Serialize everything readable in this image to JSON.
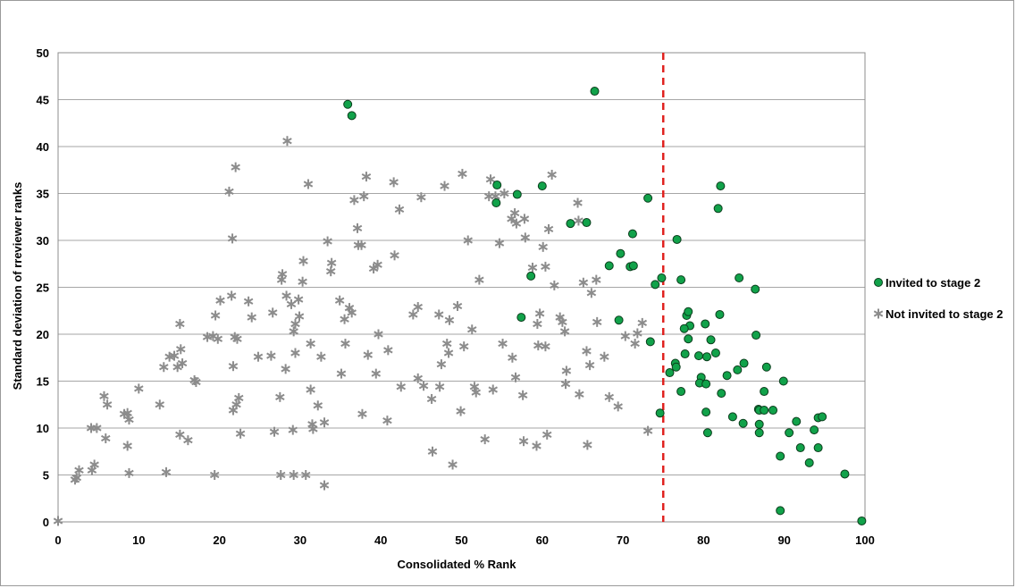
{
  "chart_data": {
    "type": "scatter",
    "title": "",
    "xlabel": "Consolidated % Rank",
    "ylabel": "Standard deviation of rreviewer ranks",
    "xlim": [
      0,
      100
    ],
    "ylim": [
      0,
      50
    ],
    "x_ticks": [
      "0",
      "10",
      "20",
      "30",
      "40",
      "50",
      "60",
      "70",
      "80",
      "90",
      "100"
    ],
    "y_ticks": [
      "0",
      "5",
      "10",
      "15",
      "20",
      "25",
      "30",
      "35",
      "40",
      "45",
      "50"
    ],
    "grid": "horizontal",
    "cutoff_line": {
      "x": 75,
      "style": "dashed",
      "color": "#e0221f"
    },
    "legend_position": "right",
    "colors": {
      "invited_fill": "#11a24a",
      "invited_edge": "#0b3d1c",
      "not_invited": "#8c8c8c",
      "grid": "#a6a6a6"
    },
    "series": [
      {
        "name": "Invited to stage 2",
        "marker": "circle",
        "points": [
          [
            35.9,
            44.5
          ],
          [
            36.4,
            43.3
          ],
          [
            66.5,
            45.9
          ],
          [
            54.3,
            34.0
          ],
          [
            54.4,
            35.9
          ],
          [
            56.9,
            34.9
          ],
          [
            60.0,
            35.8
          ],
          [
            73.1,
            34.5
          ],
          [
            63.5,
            31.8
          ],
          [
            65.5,
            31.9
          ],
          [
            71.2,
            30.7
          ],
          [
            76.7,
            30.1
          ],
          [
            69.7,
            28.6
          ],
          [
            68.3,
            27.3
          ],
          [
            70.9,
            27.2
          ],
          [
            71.3,
            27.3
          ],
          [
            58.6,
            26.2
          ],
          [
            74.8,
            26.0
          ],
          [
            74.0,
            25.3
          ],
          [
            57.4,
            21.8
          ],
          [
            69.5,
            21.5
          ],
          [
            73.4,
            19.2
          ],
          [
            74.6,
            11.6
          ],
          [
            82.1,
            35.8
          ],
          [
            81.8,
            33.4
          ],
          [
            77.2,
            25.8
          ],
          [
            84.4,
            26.0
          ],
          [
            86.4,
            24.8
          ],
          [
            77.9,
            22.0
          ],
          [
            78.1,
            22.4
          ],
          [
            82.0,
            22.1
          ],
          [
            78.3,
            20.9
          ],
          [
            77.6,
            20.6
          ],
          [
            80.2,
            21.1
          ],
          [
            86.5,
            19.9
          ],
          [
            78.1,
            19.5
          ],
          [
            80.9,
            19.4
          ],
          [
            77.7,
            17.9
          ],
          [
            79.4,
            17.7
          ],
          [
            80.4,
            17.6
          ],
          [
            81.5,
            18.0
          ],
          [
            75.8,
            15.9
          ],
          [
            76.5,
            16.9
          ],
          [
            76.6,
            16.5
          ],
          [
            85.0,
            16.9
          ],
          [
            84.2,
            16.2
          ],
          [
            87.8,
            16.5
          ],
          [
            79.7,
            15.4
          ],
          [
            82.9,
            15.6
          ],
          [
            79.5,
            14.8
          ],
          [
            80.3,
            14.7
          ],
          [
            89.9,
            15.0
          ],
          [
            77.2,
            13.9
          ],
          [
            82.2,
            13.7
          ],
          [
            87.5,
            13.9
          ],
          [
            80.3,
            11.7
          ],
          [
            83.6,
            11.2
          ],
          [
            86.8,
            12.0
          ],
          [
            86.9,
            11.9
          ],
          [
            87.5,
            11.9
          ],
          [
            88.6,
            11.9
          ],
          [
            84.9,
            10.5
          ],
          [
            86.9,
            10.4
          ],
          [
            91.5,
            10.7
          ],
          [
            94.2,
            11.1
          ],
          [
            94.7,
            11.2
          ],
          [
            80.5,
            9.5
          ],
          [
            86.9,
            9.5
          ],
          [
            90.6,
            9.5
          ],
          [
            92.0,
            7.9
          ],
          [
            93.7,
            9.8
          ],
          [
            94.2,
            7.9
          ],
          [
            89.5,
            7.0
          ],
          [
            93.1,
            6.3
          ],
          [
            97.5,
            5.1
          ],
          [
            89.5,
            1.2
          ],
          [
            99.6,
            0.1
          ]
        ]
      },
      {
        "name": "Not invited to stage 2",
        "marker": "asterisk",
        "points": [
          [
            0.0,
            0.1
          ],
          [
            2.1,
            4.5
          ],
          [
            2.3,
            4.7
          ],
          [
            2.6,
            5.5
          ],
          [
            4.2,
            5.5
          ],
          [
            4.5,
            6.1
          ],
          [
            4.1,
            10.0
          ],
          [
            4.8,
            10.0
          ],
          [
            5.9,
            8.9
          ],
          [
            5.7,
            13.4
          ],
          [
            6.1,
            12.5
          ],
          [
            8.2,
            11.5
          ],
          [
            8.6,
            11.6
          ],
          [
            8.8,
            10.9
          ],
          [
            8.6,
            8.1
          ],
          [
            8.8,
            5.2
          ],
          [
            10.0,
            14.2
          ],
          [
            12.6,
            12.5
          ],
          [
            13.1,
            16.5
          ],
          [
            13.4,
            5.3
          ],
          [
            13.8,
            17.6
          ],
          [
            14.4,
            17.7
          ],
          [
            14.8,
            16.5
          ],
          [
            15.2,
            18.4
          ],
          [
            15.4,
            16.9
          ],
          [
            15.1,
            21.1
          ],
          [
            15.1,
            9.3
          ],
          [
            16.1,
            8.7
          ],
          [
            16.9,
            15.1
          ],
          [
            17.1,
            14.9
          ],
          [
            18.5,
            19.7
          ],
          [
            19.2,
            19.8
          ],
          [
            19.5,
            22.0
          ],
          [
            19.8,
            19.5
          ],
          [
            20.1,
            23.6
          ],
          [
            19.4,
            5.0
          ],
          [
            21.2,
            35.2
          ],
          [
            21.6,
            30.2
          ],
          [
            21.5,
            24.1
          ],
          [
            21.7,
            16.6
          ],
          [
            21.7,
            11.9
          ],
          [
            21.9,
            19.7
          ],
          [
            22.2,
            19.5
          ],
          [
            22.1,
            12.5
          ],
          [
            22.4,
            13.2
          ],
          [
            22.6,
            9.4
          ],
          [
            22.0,
            37.8
          ],
          [
            23.6,
            23.5
          ],
          [
            24.0,
            21.8
          ],
          [
            24.8,
            17.6
          ],
          [
            26.4,
            17.7
          ],
          [
            26.6,
            22.3
          ],
          [
            26.8,
            9.6
          ],
          [
            27.5,
            13.3
          ],
          [
            27.7,
            25.8
          ],
          [
            27.8,
            26.4
          ],
          [
            27.6,
            5.0
          ],
          [
            28.3,
            24.1
          ],
          [
            28.2,
            16.3
          ],
          [
            28.4,
            40.6
          ],
          [
            28.9,
            23.2
          ],
          [
            29.2,
            20.3
          ],
          [
            29.1,
            9.8
          ],
          [
            29.2,
            5.0
          ],
          [
            29.4,
            21.1
          ],
          [
            29.4,
            18.0
          ],
          [
            29.8,
            23.7
          ],
          [
            29.9,
            21.9
          ],
          [
            30.3,
            25.6
          ],
          [
            30.4,
            27.8
          ],
          [
            30.7,
            5.0
          ],
          [
            31.0,
            36.0
          ],
          [
            31.3,
            14.1
          ],
          [
            31.3,
            19.0
          ],
          [
            31.5,
            10.4
          ],
          [
            31.6,
            9.9
          ],
          [
            32.2,
            12.4
          ],
          [
            32.6,
            17.6
          ],
          [
            33.0,
            10.6
          ],
          [
            33.0,
            3.9
          ],
          [
            33.4,
            29.9
          ],
          [
            33.8,
            26.7
          ],
          [
            33.9,
            27.6
          ],
          [
            34.9,
            23.6
          ],
          [
            35.1,
            15.8
          ],
          [
            35.5,
            21.6
          ],
          [
            35.6,
            19.0
          ],
          [
            36.1,
            22.8
          ],
          [
            36.4,
            22.3
          ],
          [
            36.7,
            34.3
          ],
          [
            37.1,
            31.3
          ],
          [
            37.2,
            29.5
          ],
          [
            37.6,
            29.5
          ],
          [
            37.9,
            34.7
          ],
          [
            37.7,
            11.5
          ],
          [
            38.2,
            36.8
          ],
          [
            38.4,
            17.8
          ],
          [
            39.1,
            27.0
          ],
          [
            39.4,
            15.8
          ],
          [
            39.6,
            27.4
          ],
          [
            39.7,
            20.0
          ],
          [
            40.9,
            18.3
          ],
          [
            40.8,
            10.8
          ],
          [
            41.6,
            36.2
          ],
          [
            41.7,
            28.4
          ],
          [
            42.3,
            33.3
          ],
          [
            42.5,
            14.4
          ],
          [
            44.0,
            22.1
          ],
          [
            44.6,
            22.9
          ],
          [
            44.6,
            15.3
          ],
          [
            45.0,
            34.6
          ],
          [
            45.3,
            14.5
          ],
          [
            46.3,
            13.1
          ],
          [
            46.4,
            7.5
          ],
          [
            47.2,
            22.1
          ],
          [
            47.5,
            16.8
          ],
          [
            47.3,
            14.4
          ],
          [
            47.9,
            35.8
          ],
          [
            48.2,
            19.0
          ],
          [
            48.5,
            21.5
          ],
          [
            48.4,
            18.0
          ],
          [
            48.9,
            6.1
          ],
          [
            49.5,
            23.0
          ],
          [
            49.9,
            11.8
          ],
          [
            50.1,
            37.1
          ],
          [
            50.3,
            18.7
          ],
          [
            50.8,
            30.0
          ],
          [
            51.3,
            20.5
          ],
          [
            51.6,
            14.4
          ],
          [
            51.8,
            13.8
          ],
          [
            52.2,
            25.8
          ],
          [
            52.9,
            8.8
          ],
          [
            53.4,
            34.7
          ],
          [
            53.6,
            36.5
          ],
          [
            53.9,
            14.1
          ],
          [
            54.2,
            34.7
          ],
          [
            54.7,
            29.7
          ],
          [
            55.1,
            19.0
          ],
          [
            55.3,
            35.0
          ],
          [
            56.2,
            32.3
          ],
          [
            56.3,
            17.5
          ],
          [
            56.6,
            32.9
          ],
          [
            56.7,
            15.4
          ],
          [
            56.8,
            31.8
          ],
          [
            57.6,
            13.5
          ],
          [
            57.9,
            30.3
          ],
          [
            57.8,
            32.3
          ],
          [
            57.7,
            8.6
          ],
          [
            58.8,
            27.1
          ],
          [
            59.4,
            21.1
          ],
          [
            59.3,
            8.1
          ],
          [
            59.5,
            18.8
          ],
          [
            59.7,
            22.2
          ],
          [
            60.1,
            29.3
          ],
          [
            60.4,
            18.7
          ],
          [
            60.4,
            27.2
          ],
          [
            60.8,
            31.2
          ],
          [
            60.6,
            9.3
          ],
          [
            61.2,
            37.0
          ],
          [
            61.5,
            25.2
          ],
          [
            62.2,
            21.8
          ],
          [
            62.5,
            21.3
          ],
          [
            62.8,
            20.3
          ],
          [
            63.0,
            16.1
          ],
          [
            62.9,
            14.7
          ],
          [
            64.4,
            34.0
          ],
          [
            64.5,
            32.1
          ],
          [
            64.6,
            13.6
          ],
          [
            65.1,
            25.5
          ],
          [
            65.5,
            18.2
          ],
          [
            65.6,
            8.2
          ],
          [
            65.9,
            16.7
          ],
          [
            66.1,
            24.4
          ],
          [
            66.7,
            25.8
          ],
          [
            66.8,
            21.3
          ],
          [
            67.7,
            17.6
          ],
          [
            68.3,
            13.3
          ],
          [
            69.4,
            12.3
          ],
          [
            70.3,
            19.8
          ],
          [
            71.5,
            19.0
          ],
          [
            71.8,
            20.1
          ],
          [
            72.4,
            21.2
          ],
          [
            73.1,
            9.7
          ]
        ]
      }
    ]
  }
}
